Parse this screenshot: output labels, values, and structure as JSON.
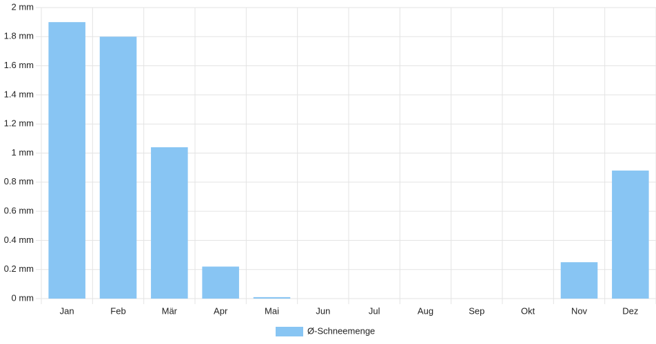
{
  "chart_data": {
    "type": "bar",
    "categories": [
      "Jan",
      "Feb",
      "Mär",
      "Apr",
      "Mai",
      "Jun",
      "Jul",
      "Aug",
      "Sep",
      "Okt",
      "Nov",
      "Dez"
    ],
    "series": [
      {
        "name": "Ø-Schneemenge",
        "color": "#88c5f3",
        "values": [
          1.9,
          1.8,
          1.04,
          0.22,
          0.01,
          0,
          0,
          0,
          0,
          0,
          0.25,
          0.88
        ]
      }
    ],
    "ylim": [
      0,
      2
    ],
    "yticks": [
      {
        "value": 0,
        "label": "0 mm"
      },
      {
        "value": 0.2,
        "label": "0.2 mm"
      },
      {
        "value": 0.4,
        "label": "0.4 mm"
      },
      {
        "value": 0.6,
        "label": "0.6 mm"
      },
      {
        "value": 0.8,
        "label": "0.8 mm"
      },
      {
        "value": 1,
        "label": "1 mm"
      },
      {
        "value": 1.2,
        "label": "1.2 mm"
      },
      {
        "value": 1.4,
        "label": "1.4 mm"
      },
      {
        "value": 1.6,
        "label": "1.6 mm"
      },
      {
        "value": 1.8,
        "label": "1.8 mm"
      },
      {
        "value": 2,
        "label": "2 mm"
      }
    ],
    "grid": true,
    "legend": "bottom"
  }
}
